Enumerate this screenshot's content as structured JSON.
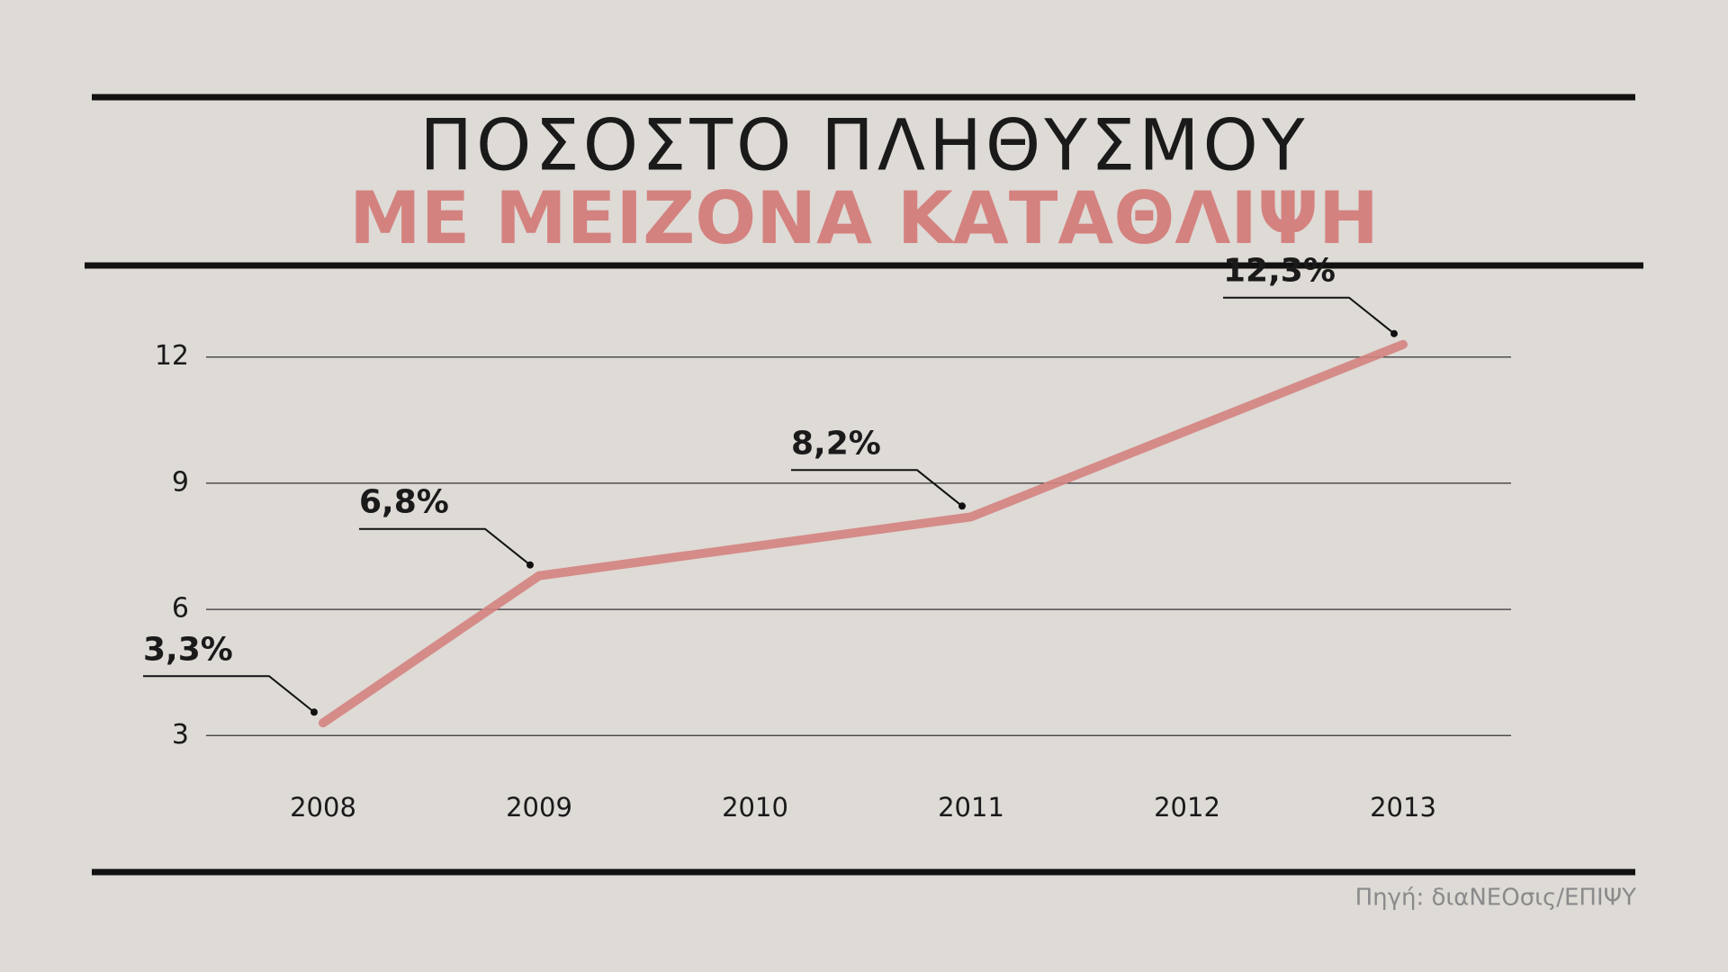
{
  "chart_data": {
    "type": "line",
    "title": "ΠΟΣΟΣΤΟ ΠΛΗΘΥΣΜΟΥ",
    "subtitle": "ΜΕ ΜΕΙΖΟΝΑ ΚΑΤΑΘΛΙΨΗ",
    "source": "Πηγή: διαΝΕΟσις/ΕΠΙΨΥ",
    "x": [
      2008,
      2009,
      2011,
      2013
    ],
    "series": [
      {
        "color": "#d4827f",
        "values": [
          3.3,
          6.8,
          8.2,
          12.3
        ],
        "value_labels": [
          "3,3%",
          "6,8%",
          "8,2%",
          "12,3%"
        ]
      }
    ],
    "xlim": [
      2007.5,
      2013.5
    ],
    "xticks": [
      2008,
      2009,
      2010,
      2011,
      2012,
      2013
    ],
    "ylim": [
      2,
      13
    ],
    "yticks": [
      3,
      6,
      9,
      12
    ],
    "grid": true
  }
}
